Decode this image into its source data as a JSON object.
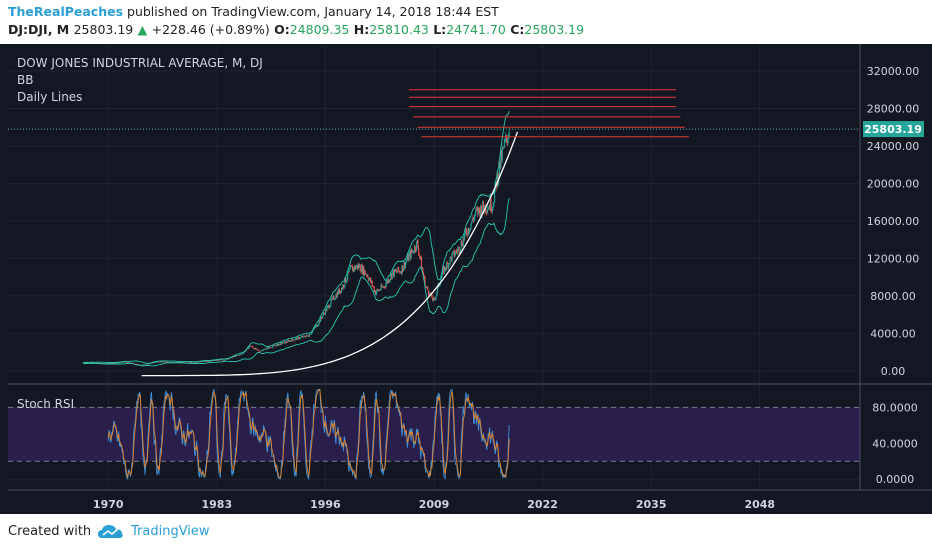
{
  "header": {
    "author": "TheRealPeaches",
    "published": "published on TradingView.com, January 14, 2018 18:44 EST",
    "symbol": "DJ:DJI, M",
    "last": "25803.19",
    "change": "+228.46 (+0.89%)",
    "o_label": "O:",
    "o_value": "24809.35",
    "h_label": "H:",
    "h_value": "25810.43",
    "l_label": "L:",
    "l_value": "24741.70",
    "c_label": "C:",
    "c_value": "25803.19"
  },
  "footer": {
    "created": "Created with",
    "brand": "TradingView"
  },
  "colors": {
    "background": "#131722",
    "up": "#26a69a",
    "down": "#ef5350",
    "bb": "#26c6b0",
    "resistance": "#e53935",
    "stoch_k": "#3d8fd6",
    "stoch_d": "#e0832a",
    "stoch_band": "#2a1f4a"
  },
  "chart_data": [
    {
      "type": "candlestick",
      "title": "DOW JONES INDUSTRIAL AVERAGE, M, DJ",
      "legend": [
        "BB",
        "Daily Lines"
      ],
      "y_ticks": [
        0,
        4000,
        8000,
        12000,
        16000,
        20000,
        24000,
        28000,
        32000
      ],
      "y_tick_labels": [
        "0.00",
        "4000.00",
        "8000.00",
        "12000.00",
        "16000.00",
        "20000.00",
        "24000.00",
        "28000.00",
        "32000.00"
      ],
      "ylim": [
        -1400,
        33600
      ],
      "last_price": 25803.19,
      "last_price_label": "25803.19",
      "x_ticks": [
        1970,
        1983,
        1996,
        2009,
        2022,
        2035,
        2048
      ],
      "xlim": [
        1958,
        2060
      ],
      "trend_points": [
        [
          1967,
          870
        ],
        [
          1970,
          800
        ],
        [
          1972,
          950
        ],
        [
          1974,
          620
        ],
        [
          1976,
          980
        ],
        [
          1980,
          880
        ],
        [
          1982,
          1050
        ],
        [
          1984,
          1200
        ],
        [
          1986,
          1800
        ],
        [
          1987,
          2700
        ],
        [
          1988,
          2100
        ],
        [
          1990,
          2700
        ],
        [
          1992,
          3300
        ],
        [
          1994,
          3800
        ],
        [
          1995,
          4900
        ],
        [
          1996,
          6400
        ],
        [
          1997,
          7800
        ],
        [
          1998,
          8900
        ],
        [
          1999,
          10800
        ],
        [
          2000,
          11200
        ],
        [
          2001,
          10300
        ],
        [
          2002,
          8400
        ],
        [
          2003,
          9000
        ],
        [
          2004,
          10400
        ],
        [
          2005,
          10700
        ],
        [
          2006,
          12200
        ],
        [
          2007,
          13600
        ],
        [
          2008,
          9000
        ],
        [
          2009,
          7400
        ],
        [
          2010,
          10500
        ],
        [
          2011,
          12000
        ],
        [
          2012,
          13100
        ],
        [
          2013,
          15000
        ],
        [
          2014,
          16800
        ],
        [
          2015,
          17500
        ],
        [
          2016,
          17800
        ],
        [
          2017,
          22500
        ],
        [
          2018,
          25803
        ]
      ],
      "parabola": {
        "x_start": 1974,
        "x_end": 2019,
        "y_start": -500,
        "y_end": 25500
      },
      "resistance_levels": [
        {
          "y": 24980,
          "x_start": 2007.5,
          "x_end": 2039.5
        },
        {
          "y": 26000,
          "x_start": 2007.0,
          "x_end": 2039.0
        },
        {
          "y": 27100,
          "x_start": 2006.5,
          "x_end": 2038.5
        },
        {
          "y": 28200,
          "x_start": 2006.0,
          "x_end": 2038.0
        },
        {
          "y": 29200,
          "x_start": 2006.0,
          "x_end": 2038.0
        },
        {
          "y": 30000,
          "x_start": 2006.0,
          "x_end": 2038.0
        }
      ]
    },
    {
      "type": "line",
      "title": "Stoch RSI",
      "y_ticks": [
        0,
        40,
        80
      ],
      "y_tick_labels": [
        "0.0000",
        "40.0000",
        "80.0000"
      ],
      "ylim": [
        -12,
        106
      ],
      "band": [
        20,
        80
      ],
      "x_start": 1970,
      "x_end": 2018
    }
  ]
}
